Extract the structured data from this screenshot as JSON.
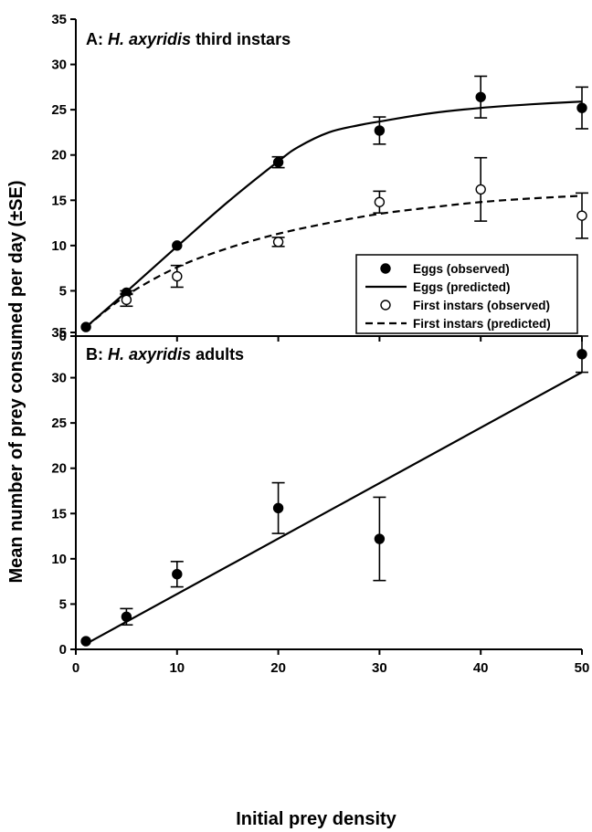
{
  "figure": {
    "ylabel": "Mean number of prey consumed per day (±SE)",
    "xlabel": "Initial prey density"
  },
  "chart_data": [
    {
      "type": "line",
      "panel_letter": "A",
      "title_species": "H. axyridis",
      "title_rest": "third instars",
      "xlim": [
        0,
        50
      ],
      "ylim": [
        0,
        35
      ],
      "xticks": [
        "0",
        "10",
        "20",
        "30",
        "40",
        "50"
      ],
      "yticks": [
        "0",
        "5",
        "10",
        "15",
        "20",
        "25",
        "30",
        "35"
      ],
      "grid": false,
      "legend_position": "bottom-right",
      "legend": [
        {
          "label": "Eggs (observed)",
          "marker": "filled-circle"
        },
        {
          "label": "Eggs (predicted)",
          "line": "solid"
        },
        {
          "label": "First instars (observed)",
          "marker": "open-circle"
        },
        {
          "label": "First instars (predicted)",
          "line": "dashed"
        }
      ],
      "series": [
        {
          "name": "Eggs (observed)",
          "marker": "filled-circle",
          "x": [
            1,
            5,
            10,
            20,
            30,
            40,
            50
          ],
          "y": [
            1.0,
            4.8,
            10.0,
            19.2,
            22.7,
            26.4,
            25.2
          ],
          "se": [
            0,
            0.2,
            0,
            0.6,
            1.5,
            2.3,
            2.3
          ]
        },
        {
          "name": "Eggs (predicted)",
          "line": "solid",
          "x": [
            1,
            5,
            10,
            15,
            20,
            22,
            25,
            28,
            30,
            35,
            40,
            45,
            50
          ],
          "y": [
            1.0,
            4.9,
            9.9,
            14.8,
            19.3,
            20.9,
            22.5,
            23.3,
            23.7,
            24.6,
            25.2,
            25.6,
            25.9
          ]
        },
        {
          "name": "First instars (observed)",
          "marker": "open-circle",
          "x": [
            5,
            10,
            20,
            30,
            40,
            50
          ],
          "y": [
            4.0,
            6.6,
            10.4,
            14.8,
            16.2,
            13.3
          ],
          "se": [
            0.7,
            1.2,
            0.5,
            1.2,
            3.5,
            2.5
          ]
        },
        {
          "name": "First instars (predicted)",
          "line": "dashed",
          "x": [
            1,
            5,
            10,
            15,
            20,
            25,
            30,
            35,
            40,
            45,
            50
          ],
          "y": [
            1.0,
            4.5,
            7.6,
            9.7,
            11.3,
            12.5,
            13.5,
            14.2,
            14.8,
            15.2,
            15.5
          ]
        }
      ]
    },
    {
      "type": "line",
      "panel_letter": "B",
      "title_species": "H. axyridis",
      "title_rest": "adults",
      "xlim": [
        0,
        50
      ],
      "ylim": [
        0,
        35
      ],
      "xticks": [
        "0",
        "10",
        "20",
        "30",
        "40",
        "50"
      ],
      "yticks": [
        "0",
        "5",
        "10",
        "15",
        "20",
        "25",
        "30",
        "35"
      ],
      "grid": false,
      "series": [
        {
          "marker": "filled-circle",
          "x": [
            1,
            5,
            10,
            20,
            30,
            50
          ],
          "y": [
            0.9,
            3.6,
            8.3,
            15.6,
            12.2,
            32.6
          ],
          "se": [
            0,
            0.9,
            1.4,
            2.8,
            4.6,
            2.0
          ]
        },
        {
          "line": "solid",
          "x": [
            1,
            50
          ],
          "y": [
            0.6,
            30.6
          ]
        }
      ]
    }
  ]
}
